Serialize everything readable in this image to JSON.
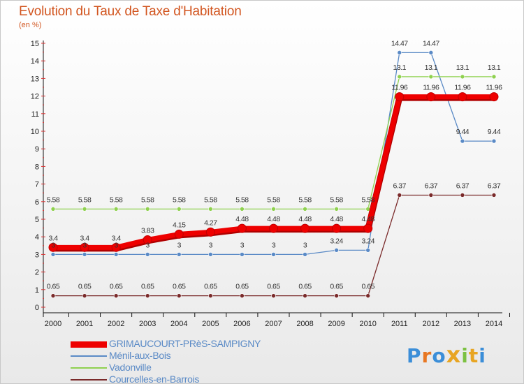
{
  "title": "Evolution du Taux de Taxe d'Habitation",
  "unit": "(en %)",
  "logo": {
    "letters": [
      "P",
      "r",
      "o",
      "x",
      "i",
      "t",
      "i"
    ],
    "colors": [
      "#3b8ed8",
      "#e87722",
      "#3b8ed8",
      "#e8a522",
      "#7cc142",
      "#e8a522",
      "#3b8ed8"
    ]
  },
  "chart_data": {
    "type": "line",
    "x": [
      "2000",
      "2001",
      "2002",
      "2003",
      "2004",
      "2005",
      "2006",
      "2007",
      "2008",
      "2009",
      "2010",
      "2011",
      "2012",
      "2013",
      "2014"
    ],
    "ylim": [
      0,
      15
    ],
    "yticks": [
      "0",
      "1",
      "2",
      "3",
      "4",
      "5",
      "6",
      "7",
      "8",
      "9",
      "10",
      "11",
      "12",
      "13",
      "14",
      "15"
    ],
    "grid": false,
    "legend_position": "bottom",
    "series": [
      {
        "name": "GRIMAUCOURT-PRèS-SAMPIGNY",
        "color": "#ee0000",
        "width": 7,
        "values": [
          3.4,
          3.4,
          3.4,
          3.83,
          4.15,
          4.27,
          4.48,
          4.48,
          4.48,
          4.48,
          4.48,
          11.96,
          11.96,
          11.96,
          11.96
        ],
        "labels": [
          "3.4",
          "3.4",
          "3.4",
          "3.83",
          "4.15",
          "4.27",
          "4.48",
          "4.48",
          "4.48",
          "4.48",
          "4.48",
          "11.96",
          "11.96",
          "11.96",
          "11.96"
        ]
      },
      {
        "name": "Ménil-aux-Bois",
        "color": "#5a8ac6",
        "width": 1.3,
        "values": [
          3,
          3,
          3,
          3,
          3,
          3,
          3,
          3,
          3,
          3.24,
          3.24,
          14.47,
          14.47,
          9.44,
          9.44
        ],
        "labels": [
          "3",
          "3",
          "3",
          "3",
          "3",
          "3",
          "3",
          "3",
          "3",
          "3.24",
          "3.24",
          "14.47",
          "14.47",
          "9.44",
          "9.44"
        ]
      },
      {
        "name": "Vadonville",
        "color": "#8fd14f",
        "width": 1.3,
        "values": [
          5.58,
          5.58,
          5.58,
          5.58,
          5.58,
          5.58,
          5.58,
          5.58,
          5.58,
          5.58,
          5.58,
          13.1,
          13.1,
          13.1,
          13.1
        ],
        "labels": [
          "5.58",
          "5.58",
          "5.58",
          "5.58",
          "5.58",
          "5.58",
          "5.58",
          "5.58",
          "5.58",
          "5.58",
          "5.58",
          "13.1",
          "13.1",
          "13.1",
          "13.1"
        ]
      },
      {
        "name": "Courcelles-en-Barrois",
        "color": "#7a2a2a",
        "width": 1.3,
        "values": [
          0.65,
          0.65,
          0.65,
          0.65,
          0.65,
          0.65,
          0.65,
          0.65,
          0.65,
          0.65,
          0.65,
          6.37,
          6.37,
          6.37,
          6.37
        ],
        "labels": [
          "0.65",
          "0.65",
          "0.65",
          "0.65",
          "0.65",
          "0.65",
          "0.65",
          "0.65",
          "0.65",
          "0.65",
          "0.65",
          "6.37",
          "6.37",
          "6.37",
          "6.37"
        ]
      }
    ]
  }
}
